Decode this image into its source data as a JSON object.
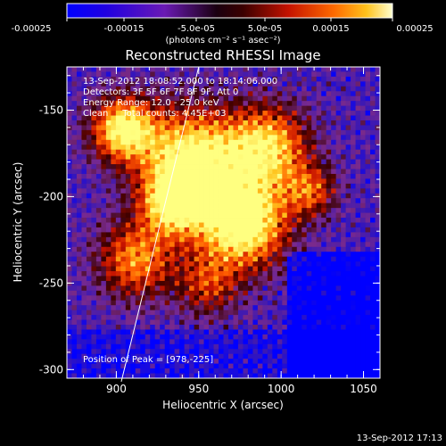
{
  "colorbar": {
    "ticks": [
      "-0.00025",
      "-0.00015",
      "-5.0e-05",
      "5.0e-05",
      "0.00015",
      "0.00025"
    ],
    "units": "(photons cm⁻² s⁻¹ asec⁻²)"
  },
  "chart_data": {
    "type": "heatmap",
    "title": "Reconstructed RHESSI Image",
    "xlabel": "Heliocentric X (arcsec)",
    "ylabel": "Heliocentric Y (arcsec)",
    "xlim": [
      870,
      1060
    ],
    "ylim": [
      -305,
      -125
    ],
    "xticks": [
      900,
      950,
      1000,
      1050
    ],
    "yticks": [
      -150,
      -200,
      -250,
      -300
    ],
    "value_range": [
      -0.00025,
      0.00025
    ],
    "annotations": [
      "13-Sep-2012 18:08:52.000 to 18:14:06.000",
      "Detectors: 3F 5F 6F 7F 8F 9F, Att 0",
      "Energy Range: 12.0 - 25.0 keV",
      "Clean     Total counts: 4.45E+03"
    ],
    "peak_label": "Position of Peak = [978,-225]",
    "peak": [
      978,
      -225
    ],
    "limb": [
      [
        903,
        -307
      ],
      [
        950,
        -125
      ]
    ],
    "colors": {
      "colormap": [
        "#0000ff",
        "#3a18b4",
        "#7a2a8c",
        "#3a0000",
        "#c41200",
        "#ff5a00",
        "#ffc21c",
        "#ffff80"
      ],
      "background": "#000000",
      "text": "#ffffff"
    }
  },
  "footer": {
    "timestamp": "13-Sep-2012 17:13"
  }
}
